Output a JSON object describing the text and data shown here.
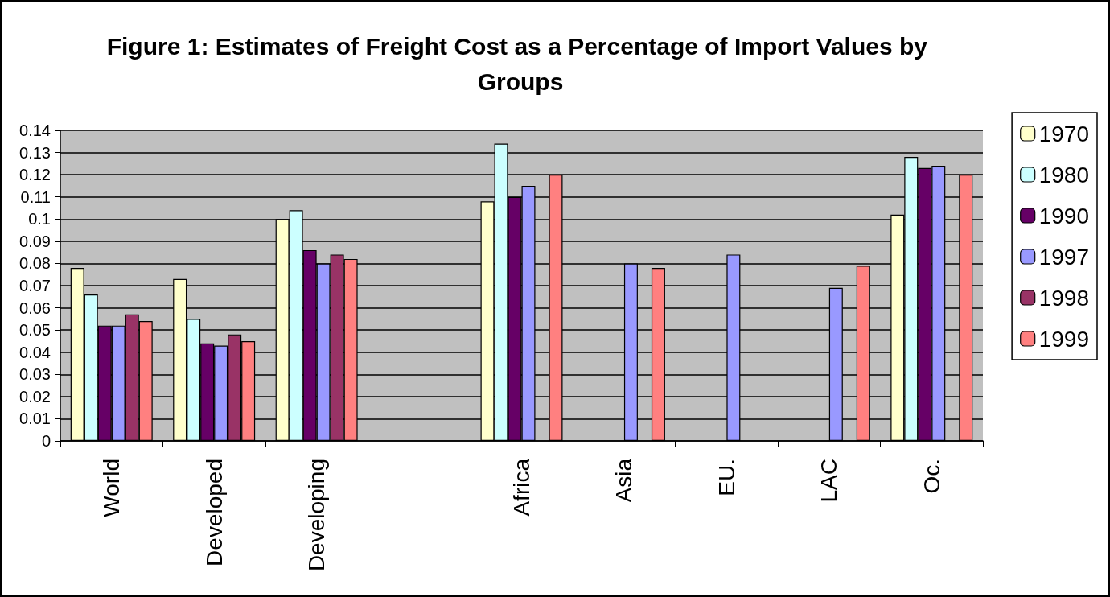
{
  "chart_data": {
    "type": "bar",
    "title": "Figure 1: Estimates of Freight Cost as a Percentage of Import Values by Groups",
    "categories": [
      "World",
      "Developed",
      "Developing",
      null,
      "Africa",
      "Asia",
      "EU.",
      "LAC",
      "Oc."
    ],
    "series": [
      {
        "name": "1970",
        "color": "#ffffcc",
        "values": [
          0.078,
          0.073,
          0.1,
          null,
          0.108,
          null,
          null,
          null,
          0.102
        ]
      },
      {
        "name": "1980",
        "color": "#ccffff",
        "values": [
          0.066,
          0.055,
          0.104,
          null,
          0.134,
          null,
          null,
          null,
          0.128
        ]
      },
      {
        "name": "1990",
        "color": "#660066",
        "values": [
          0.052,
          0.044,
          0.086,
          null,
          0.11,
          null,
          null,
          null,
          0.123
        ]
      },
      {
        "name": "1997",
        "color": "#9999ff",
        "values": [
          0.052,
          0.043,
          0.08,
          null,
          0.115,
          0.08,
          0.084,
          0.069,
          0.124
        ]
      },
      {
        "name": "1998",
        "color": "#993366",
        "values": [
          0.057,
          0.048,
          0.084,
          null,
          null,
          null,
          null,
          null,
          null
        ]
      },
      {
        "name": "1999",
        "color": "#ff8080",
        "values": [
          0.054,
          0.045,
          0.082,
          null,
          0.12,
          0.078,
          null,
          0.079,
          0.12
        ]
      }
    ],
    "ylim": [
      0,
      0.14
    ],
    "yticks": [
      0,
      0.01,
      0.02,
      0.03,
      0.04,
      0.05,
      0.06,
      0.07,
      0.08,
      0.09,
      0.1,
      0.11,
      0.12,
      0.13,
      0.14
    ],
    "grid": "y",
    "legend": "right"
  }
}
